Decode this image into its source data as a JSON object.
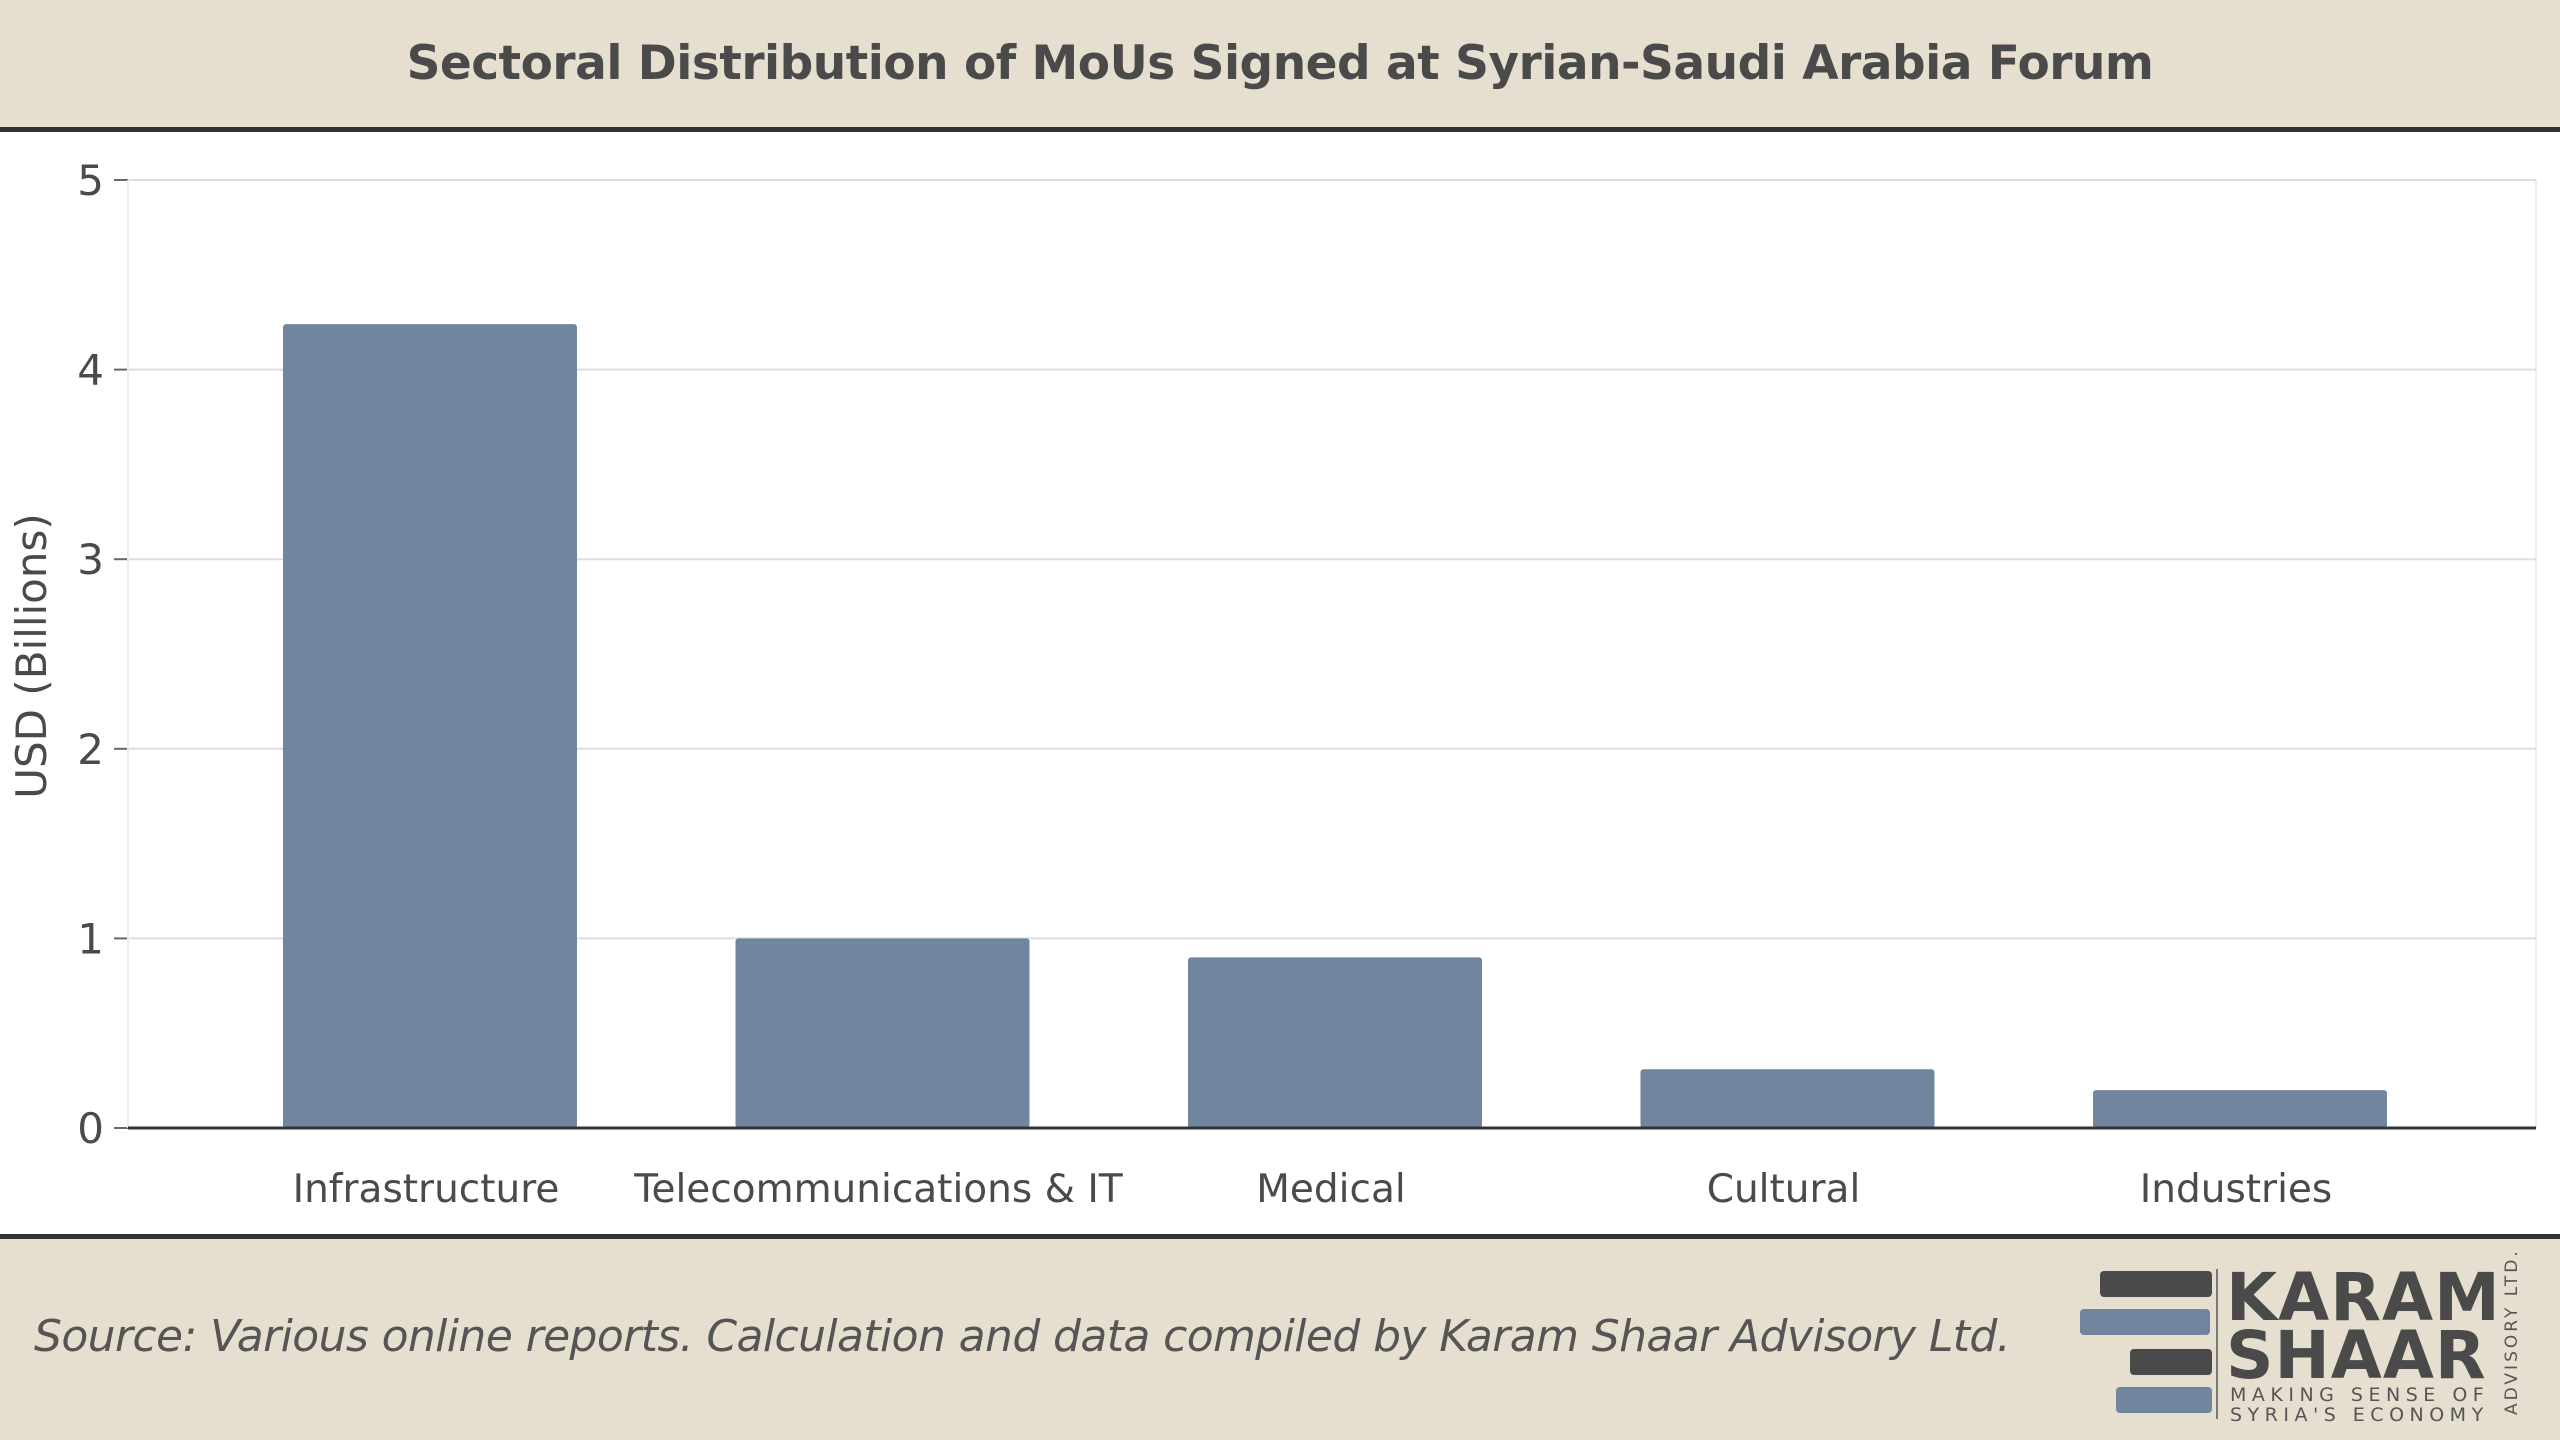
{
  "header": {
    "title": "Sectoral Distribution of MoUs Signed at Syrian-Saudi Arabia Forum"
  },
  "footer": {
    "source": "Source: Various online reports. Calculation and data compiled by Karam Shaar Advisory Ltd.",
    "logo": {
      "word1": "KARAM",
      "word2": "SHAAR",
      "tagline1": "MAKING SENSE OF",
      "tagline2": "SYRIA'S ECONOMY",
      "vertical": "ADVISORY LTD."
    }
  },
  "colors": {
    "bar": "#71859f",
    "header_bg": "#e6dfcf",
    "rule": "#333333",
    "grid": "#dddddd",
    "text": "#4a4a4a",
    "logo_dark": "#4a4a4a",
    "logo_blue": "#71859f"
  },
  "chart_data": {
    "type": "bar",
    "title": "Sectoral Distribution of MoUs Signed at Syrian-Saudi Arabia Forum",
    "xlabel": "",
    "ylabel": "USD (Billions)",
    "categories": [
      "Infrastructure",
      "Telecommunications & IT",
      "Medical",
      "Cultural",
      "Industries"
    ],
    "values": [
      4.24,
      1.0,
      0.9,
      0.31,
      0.2
    ],
    "ylim": [
      0,
      5
    ],
    "yticks": [
      0,
      1,
      2,
      3,
      4,
      5
    ],
    "grid": true,
    "legend": "none"
  }
}
